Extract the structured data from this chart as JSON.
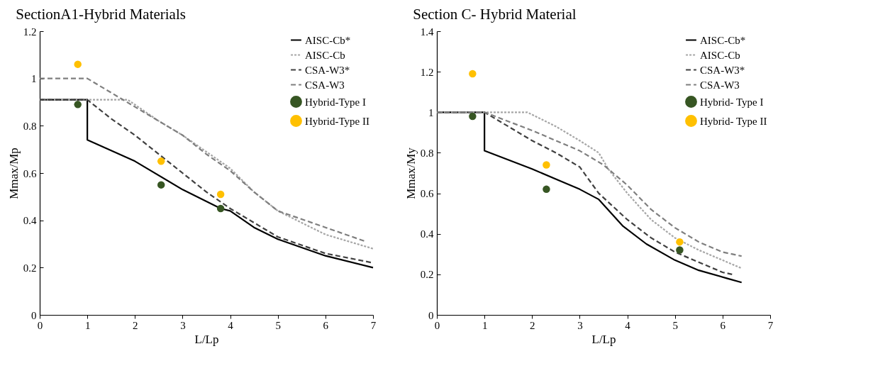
{
  "chart_data": [
    {
      "type": "line",
      "title": "SectionA1-Hybrid Materials",
      "xlabel": "L/Lp",
      "ylabel": "Mmax/Mp",
      "xlim": [
        0,
        7
      ],
      "ylim": [
        0,
        1.2
      ],
      "xticks": [
        0,
        1,
        2,
        3,
        4,
        5,
        6,
        7
      ],
      "yticks": [
        0,
        0.2,
        0.4,
        0.6,
        0.8,
        1,
        1.2
      ],
      "grid": false,
      "legend": "top right",
      "series": [
        {
          "name": "AISC-Cb*",
          "type": "line",
          "line_style": "solid",
          "color": "#000000",
          "x": [
            0,
            1,
            1,
            2,
            3,
            3.8,
            4,
            4.5,
            5,
            6,
            7
          ],
          "values": [
            0.91,
            0.91,
            0.74,
            0.65,
            0.53,
            0.45,
            0.44,
            0.37,
            0.32,
            0.25,
            0.2
          ]
        },
        {
          "name": "AISC-Cb",
          "type": "line",
          "line_style": "dotted",
          "color": "#a6a6a6",
          "x": [
            0,
            1.85,
            2.5,
            3,
            3.5,
            4,
            4.5,
            5,
            6,
            7
          ],
          "values": [
            0.91,
            0.91,
            0.82,
            0.76,
            0.69,
            0.62,
            0.52,
            0.44,
            0.34,
            0.28
          ]
        },
        {
          "name": "CSA-W3*",
          "type": "line",
          "line_style": "dashed",
          "color": "#404040",
          "x": [
            0,
            1,
            1.5,
            2,
            2.5,
            3,
            3.5,
            4,
            5,
            6,
            7
          ],
          "values": [
            0.91,
            0.91,
            0.83,
            0.76,
            0.68,
            0.6,
            0.52,
            0.45,
            0.33,
            0.26,
            0.22
          ]
        },
        {
          "name": "CSA-W3",
          "type": "line",
          "line_style": "dashed",
          "color": "#7f7f7f",
          "x": [
            0,
            1,
            2,
            3,
            3.5,
            4,
            4.5,
            5,
            6,
            6.85
          ],
          "values": [
            1,
            1,
            0.88,
            0.76,
            0.68,
            0.61,
            0.52,
            0.44,
            0.37,
            0.31
          ]
        },
        {
          "name": "Hybrid-Type I",
          "type": "scatter",
          "marker": "circle",
          "color": "#375623",
          "x": [
            0.8,
            2.55,
            3.8
          ],
          "values": [
            0.89,
            0.55,
            0.45
          ]
        },
        {
          "name": "Hybrid-Type II",
          "type": "scatter",
          "marker": "circle",
          "color": "#ffc000",
          "x": [
            0.8,
            2.55,
            3.8
          ],
          "values": [
            1.06,
            0.65,
            0.51
          ]
        }
      ]
    },
    {
      "type": "line",
      "title": "Section C- Hybrid Material",
      "xlabel": "L/Lp",
      "ylabel": "Mmax/My",
      "xlim": [
        0,
        7
      ],
      "ylim": [
        0,
        1.4
      ],
      "xticks": [
        0,
        1,
        2,
        3,
        4,
        5,
        6,
        7
      ],
      "yticks": [
        0,
        0.2,
        0.4,
        0.6,
        0.8,
        1,
        1.2,
        1.4
      ],
      "grid": false,
      "legend": "top right",
      "series": [
        {
          "name": "AISC-Cb*",
          "type": "line",
          "line_style": "solid",
          "color": "#000000",
          "x": [
            0,
            1,
            1,
            2,
            3,
            3.4,
            3.9,
            4.4,
            5,
            5.5,
            6.1,
            6.4
          ],
          "values": [
            1,
            1,
            0.81,
            0.72,
            0.62,
            0.57,
            0.44,
            0.35,
            0.27,
            0.22,
            0.18,
            0.16
          ]
        },
        {
          "name": "AISC-Cb",
          "type": "line",
          "line_style": "dotted",
          "color": "#a6a6a6",
          "x": [
            0,
            1.9,
            2.5,
            3,
            3.4,
            3.6,
            4,
            4.5,
            5,
            5.5,
            6,
            6.4
          ],
          "values": [
            1,
            1,
            0.93,
            0.86,
            0.8,
            0.72,
            0.6,
            0.47,
            0.38,
            0.32,
            0.27,
            0.23
          ]
        },
        {
          "name": "CSA-W3*",
          "type": "line",
          "line_style": "dashed",
          "color": "#404040",
          "x": [
            0,
            1,
            1.5,
            2,
            2.5,
            3,
            3.4,
            4,
            4.5,
            5,
            5.5,
            6,
            6.2
          ],
          "values": [
            1,
            1,
            0.93,
            0.86,
            0.8,
            0.73,
            0.6,
            0.47,
            0.38,
            0.31,
            0.26,
            0.21,
            0.2
          ]
        },
        {
          "name": "CSA-W3",
          "type": "line",
          "line_style": "dashed",
          "color": "#7f7f7f",
          "x": [
            0,
            1,
            2,
            2.5,
            3,
            3.5,
            4,
            4.5,
            5,
            5.5,
            6,
            6.4
          ],
          "values": [
            1,
            1,
            0.91,
            0.86,
            0.81,
            0.74,
            0.64,
            0.52,
            0.43,
            0.36,
            0.31,
            0.29
          ]
        },
        {
          "name": "Hybrid- Type I",
          "type": "scatter",
          "marker": "circle",
          "color": "#375623",
          "x": [
            0.75,
            2.3,
            5.1
          ],
          "values": [
            0.98,
            0.62,
            0.32
          ]
        },
        {
          "name": "Hybrid- Type II",
          "type": "scatter",
          "marker": "circle",
          "color": "#ffc000",
          "x": [
            0.75,
            2.3,
            5.1
          ],
          "values": [
            1.19,
            0.74,
            0.36
          ]
        }
      ]
    }
  ]
}
